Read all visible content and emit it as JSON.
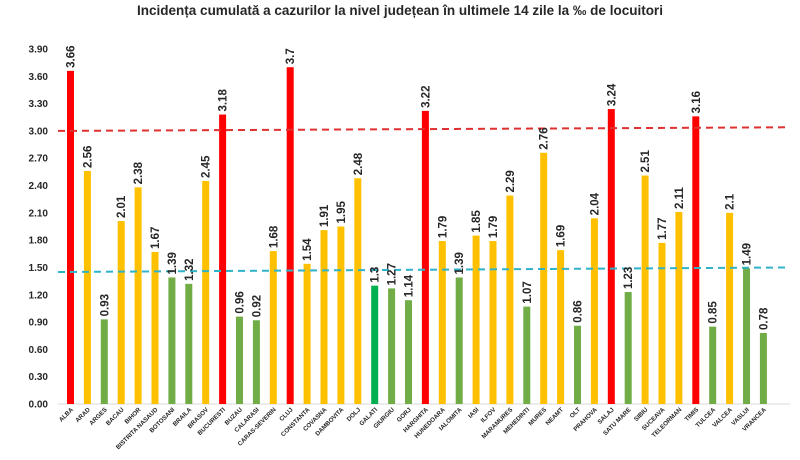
{
  "chart_data": {
    "type": "bar",
    "title": "Incidența cumulată a cazurilor la nivel județean în ultimele 14 zile la ‰ de locuitori",
    "xlabel": "",
    "ylabel": "",
    "ylim": [
      0,
      3.9
    ],
    "yticks": [
      "0.00",
      "0.30",
      "0.60",
      "0.90",
      "1.20",
      "1.50",
      "1.80",
      "2.10",
      "2.40",
      "2.70",
      "3.00",
      "3.30",
      "3.60",
      "3.90"
    ],
    "grid": false,
    "reference_lines": [
      {
        "value": 3.0,
        "color": "#e03030",
        "style": "dashed"
      },
      {
        "value": 1.5,
        "color": "#2fb3c9",
        "style": "dashed"
      }
    ],
    "colors": {
      "red": "#ff0000",
      "yellow": "#ffc000",
      "green": "#70ad47",
      "bright_green": "#00b050"
    },
    "categories": [
      "ALBA",
      "ARAD",
      "ARGES",
      "BACAU",
      "BIHOR",
      "BISTRITA NASAUD",
      "BOTOSANI",
      "BRAILA",
      "BRASOV",
      "BUCURESTI",
      "BUZAU",
      "CALARASI",
      "CARAS-SEVERIN",
      "CLUJ",
      "CONSTANTA",
      "COVASNA",
      "DAMBOVITA",
      "DOLJ",
      "GALATI",
      "GIURGIU",
      "GORJ",
      "HARGHITA",
      "HUNEDOARA",
      "IALOMITA",
      "IASI",
      "ILFOV",
      "MARAMURES",
      "MEHEDINTI",
      "MURES",
      "NEAMT",
      "OLT",
      "PRAHOVA",
      "SALAJ",
      "SATU MARE",
      "SIBIU",
      "SUCEAVA",
      "TELEORMAN",
      "TIMIS",
      "TULCEA",
      "VALCEA",
      "VASLUI",
      "VRANCEA"
    ],
    "values": [
      3.66,
      2.56,
      0.93,
      2.01,
      2.38,
      1.67,
      1.39,
      1.32,
      2.45,
      3.18,
      0.96,
      0.92,
      1.68,
      3.7,
      1.54,
      1.91,
      1.95,
      2.48,
      1.3,
      1.27,
      1.14,
      3.22,
      1.79,
      1.39,
      1.85,
      1.79,
      2.29,
      1.07,
      2.76,
      1.69,
      0.86,
      2.04,
      3.24,
      1.23,
      2.51,
      1.77,
      2.11,
      3.16,
      0.85,
      2.1,
      1.49,
      0.78
    ],
    "value_labels": [
      "3.66",
      "2.56",
      "0.93",
      "2.01",
      "2.38",
      "1.67",
      "1.39",
      "1.32",
      "2.45",
      "3.18",
      "0.96",
      "0.92",
      "1.68",
      "3.7",
      "1.54",
      "1.91",
      "1.95",
      "2.48",
      "1.3",
      "1.27",
      "1.14",
      "3.22",
      "1.79",
      "1.39",
      "1.85",
      "1.79",
      "2.29",
      "1.07",
      "2.76",
      "1.69",
      "0.86",
      "2.04",
      "3.24",
      "1.23",
      "2.51",
      "1.77",
      "2.11",
      "3.16",
      "0.85",
      "2.1",
      "1.49",
      "0.78"
    ],
    "bar_colors": [
      "red",
      "yellow",
      "green",
      "yellow",
      "yellow",
      "yellow",
      "green",
      "green",
      "yellow",
      "red",
      "green",
      "green",
      "yellow",
      "red",
      "yellow",
      "yellow",
      "yellow",
      "yellow",
      "bright_green",
      "green",
      "green",
      "red",
      "yellow",
      "green",
      "yellow",
      "yellow",
      "yellow",
      "green",
      "yellow",
      "yellow",
      "green",
      "yellow",
      "red",
      "green",
      "yellow",
      "yellow",
      "yellow",
      "red",
      "green",
      "yellow",
      "green",
      "green"
    ]
  }
}
